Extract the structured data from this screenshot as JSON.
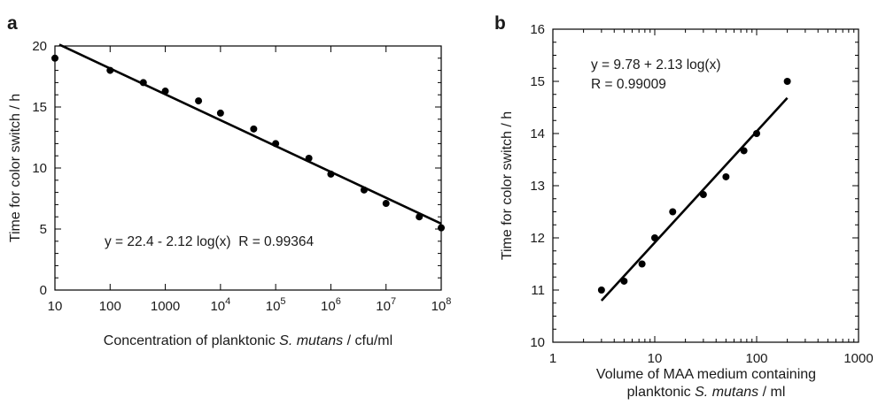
{
  "chart_data": [
    {
      "panel": "a",
      "type": "scatter",
      "x_scale": "log",
      "xlabel_prefix": "Concentration of planktonic ",
      "xlabel_italic": "S. mutans",
      "xlabel_suffix": " / cfu/ml",
      "ylabel": "Time for color switch / h",
      "xlim": [
        10,
        100000000
      ],
      "ylim": [
        0,
        20
      ],
      "x_ticks": [
        {
          "v": 10,
          "base": "10",
          "exp": ""
        },
        {
          "v": 100,
          "base": "100",
          "exp": ""
        },
        {
          "v": 1000,
          "base": "1000",
          "exp": ""
        },
        {
          "v": 10000,
          "base": "10",
          "exp": "4"
        },
        {
          "v": 100000,
          "base": "10",
          "exp": "5"
        },
        {
          "v": 1000000,
          "base": "10",
          "exp": "6"
        },
        {
          "v": 10000000,
          "base": "10",
          "exp": "7"
        },
        {
          "v": 100000000,
          "base": "10",
          "exp": "8"
        }
      ],
      "y_ticks": [
        0,
        5,
        10,
        15,
        20
      ],
      "points": [
        {
          "x": 10,
          "y": 19.0
        },
        {
          "x": 100,
          "y": 18.0
        },
        {
          "x": 400,
          "y": 17.0
        },
        {
          "x": 1000,
          "y": 16.3
        },
        {
          "x": 4000,
          "y": 15.5
        },
        {
          "x": 10000,
          "y": 14.5
        },
        {
          "x": 40000,
          "y": 13.2
        },
        {
          "x": 100000,
          "y": 12.0
        },
        {
          "x": 400000,
          "y": 10.8
        },
        {
          "x": 1000000,
          "y": 9.5
        },
        {
          "x": 4000000,
          "y": 8.2
        },
        {
          "x": 10000000,
          "y": 7.1
        },
        {
          "x": 40000000,
          "y": 6.0
        },
        {
          "x": 100000000,
          "y": 5.1
        }
      ],
      "fit": {
        "intercept": 22.4,
        "slope": -2.12,
        "x_from": 12,
        "x_to": 100000000
      },
      "equation": "y = 22.4 - 2.12 log(x)  R = 0.99364"
    },
    {
      "panel": "b",
      "type": "scatter",
      "x_scale": "log",
      "xlabel_line1": "Volume of MAA medium containing",
      "xlabel_prefix": "planktonic ",
      "xlabel_italic": "S. mutans",
      "xlabel_suffix": " / ml",
      "ylabel": "Time for color switch / h",
      "xlim": [
        1,
        1000
      ],
      "ylim": [
        10,
        16
      ],
      "x_ticks": [
        {
          "v": 1,
          "base": "1",
          "exp": ""
        },
        {
          "v": 10,
          "base": "10",
          "exp": ""
        },
        {
          "v": 100,
          "base": "100",
          "exp": ""
        },
        {
          "v": 1000,
          "base": "1000",
          "exp": ""
        }
      ],
      "y_ticks": [
        10,
        11,
        12,
        13,
        14,
        15,
        16
      ],
      "points": [
        {
          "x": 3,
          "y": 11.0
        },
        {
          "x": 5,
          "y": 11.17
        },
        {
          "x": 7.5,
          "y": 11.5
        },
        {
          "x": 10,
          "y": 12.0
        },
        {
          "x": 15,
          "y": 12.5
        },
        {
          "x": 30,
          "y": 12.83
        },
        {
          "x": 50,
          "y": 13.17
        },
        {
          "x": 75,
          "y": 13.67
        },
        {
          "x": 100,
          "y": 14.0
        },
        {
          "x": 200,
          "y": 15.0
        }
      ],
      "fit": {
        "intercept": 9.78,
        "slope": 2.13,
        "x_from": 3,
        "x_to": 200
      },
      "equation_line1": "y = 9.78 + 2.13 log(x)",
      "equation_line2": "R = 0.99009"
    }
  ]
}
